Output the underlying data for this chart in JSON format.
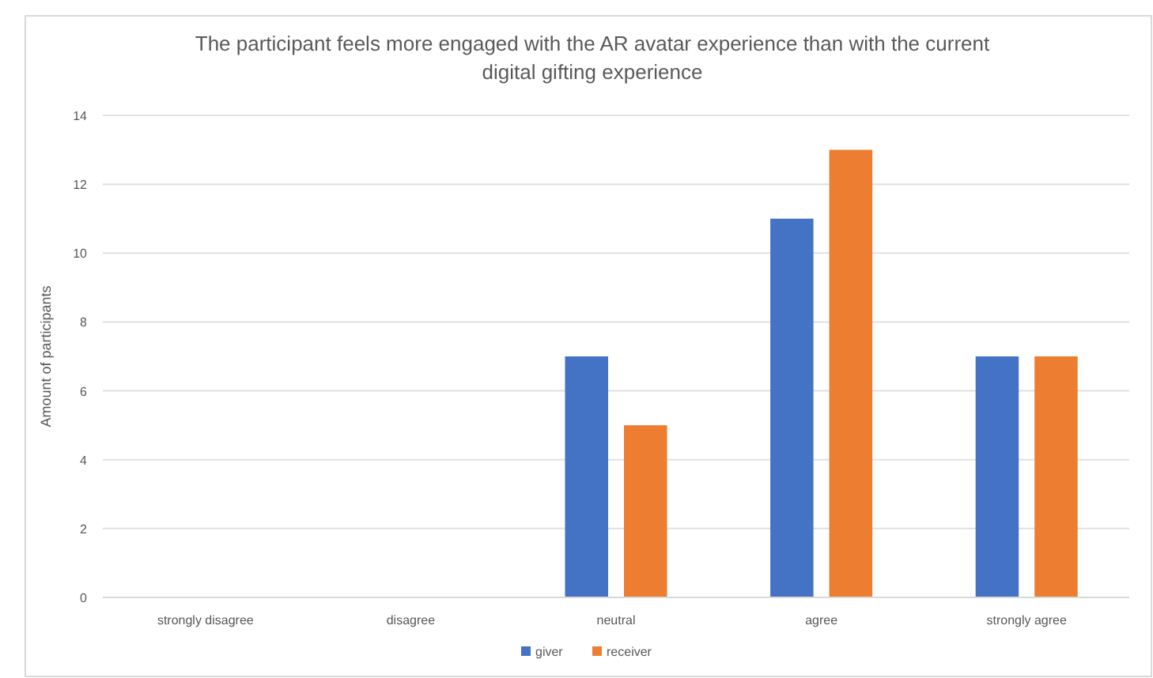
{
  "chart_data": {
    "type": "bar",
    "title": "The participant feels more engaged with the AR avatar experience than with the current digital gifting experience",
    "ylabel": "Amount of participants",
    "categories": [
      "strongly disagree",
      "disagree",
      "neutral",
      "agree",
      "strongly agree"
    ],
    "series": [
      {
        "name": "giver",
        "color": "#4472c4",
        "values": [
          0,
          0,
          7,
          11,
          7
        ]
      },
      {
        "name": "receiver",
        "color": "#ed7d31",
        "values": [
          0,
          0,
          5,
          13,
          7
        ]
      }
    ],
    "ylim": [
      0,
      14
    ],
    "yticks": [
      0,
      2,
      4,
      6,
      8,
      10,
      12,
      14
    ],
    "grid": "y",
    "legend": "bottom"
  }
}
